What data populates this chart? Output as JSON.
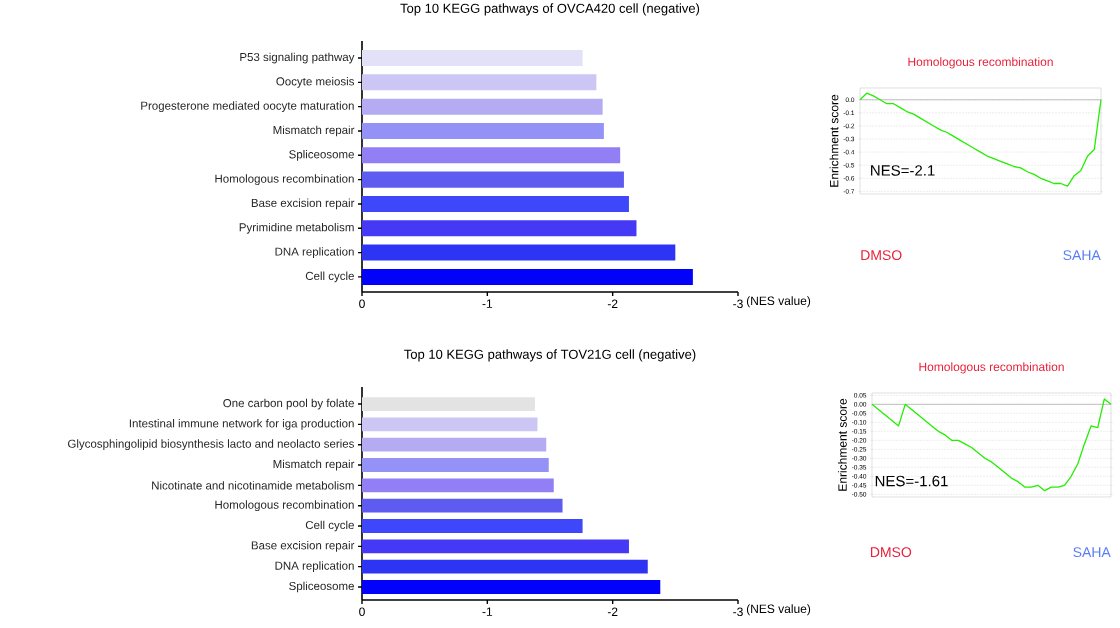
{
  "chart_data": [
    {
      "type": "bar",
      "orientation": "horizontal",
      "title": "Top 10 KEGG pathways of OVCA420 cell (negative)",
      "xlabel": "(NES value)",
      "categories": [
        "P53 signaling pathway",
        "Oocyte meiosis",
        "Progesterone mediated oocyte maturation",
        "Mismatch repair",
        "Spliceosome",
        "Homologous recombination",
        "Base excision repair",
        "Pyrimidine metabolism",
        "DNA replication",
        "Cell cycle"
      ],
      "values": [
        -1.76,
        -1.87,
        -1.92,
        -1.93,
        -2.06,
        -2.09,
        -2.13,
        -2.19,
        -2.5,
        -2.64
      ],
      "colors": [
        "#e3e1f8",
        "#ccc6f5",
        "#b4abf3",
        "#9592f7",
        "#937ff5",
        "#5e5bf0",
        "#3e48fa",
        "#4539f6",
        "#2e34f4",
        "#0202fa"
      ],
      "xlim": [
        0,
        -3
      ],
      "xticks": [
        0,
        -1,
        -2,
        -3
      ]
    },
    {
      "type": "line",
      "title": "Homologous recombination",
      "ylabel": "Enrichment score",
      "categories": [
        null,
        null,
        null,
        null,
        null,
        null,
        null,
        null,
        null,
        null,
        null,
        null,
        null,
        null,
        null,
        null,
        null,
        null,
        null,
        null,
        null,
        null,
        null,
        null,
        null,
        null,
        null,
        null,
        null,
        null,
        null,
        null,
        null,
        null,
        null,
        null,
        null
      ],
      "series": [
        {
          "color": "#22ee00",
          "values": [
            0.0,
            0.05,
            0.03,
            0.0,
            -0.03,
            -0.03,
            -0.06,
            -0.09,
            -0.11,
            -0.14,
            -0.17,
            -0.2,
            -0.23,
            -0.25,
            -0.28,
            -0.31,
            -0.34,
            -0.37,
            -0.4,
            -0.43,
            -0.45,
            -0.47,
            -0.49,
            -0.51,
            -0.52,
            -0.55,
            -0.57,
            -0.6,
            -0.62,
            -0.64,
            -0.64,
            -0.66,
            -0.58,
            -0.54,
            -0.43,
            -0.38,
            0.0
          ]
        }
      ],
      "ylim": [
        -0.72,
        0.09
      ],
      "yticks": [
        {
          "value": 0,
          "label": "0.0"
        },
        {
          "value": -0.1,
          "label": "-0.1"
        },
        {
          "value": -0.2,
          "label": "-0.2"
        },
        {
          "value": -0.3,
          "label": "-0.3"
        },
        {
          "value": -0.4,
          "label": "-0.4"
        },
        {
          "value": -0.5,
          "label": "-0.5"
        },
        {
          "value": -0.6,
          "label": "-0.6"
        },
        {
          "value": -0.7,
          "label": "-0.7"
        }
      ],
      "grid": "y",
      "tick_labels": "y",
      "ref_lines": [
        {
          "axis": "y",
          "value": 0,
          "color": "#999999"
        }
      ],
      "annotations": [
        "NES=-2.1",
        "DMSO",
        "SAHA"
      ]
    },
    {
      "type": "bar",
      "orientation": "horizontal",
      "title": "Top 10 KEGG pathways of TOV21G cell (negative)",
      "xlabel": "(NES value)",
      "categories": [
        "One carbon pool by folate",
        "Intestinal immune network for iga production",
        "Glycosphingolipid biosynthesis lacto and neolacto series",
        "Mismatch repair",
        "Nicotinate and nicotinamide metabolism",
        "Homologous recombination",
        "Cell cycle",
        "Base excision repair",
        "DNA replication",
        "Spliceosome"
      ],
      "values": [
        -1.38,
        -1.4,
        -1.47,
        -1.49,
        -1.53,
        -1.6,
        -1.76,
        -2.13,
        -2.28,
        -2.38
      ],
      "colors": [
        "#e3e3e3",
        "#ccc6f5",
        "#b4abf3",
        "#9592f7",
        "#937ff5",
        "#5e5bf0",
        "#3e48fa",
        "#4539f6",
        "#2e34f4",
        "#0202fa"
      ],
      "xlim": [
        0,
        -3
      ],
      "xticks": [
        0,
        -1,
        -2,
        -3
      ]
    },
    {
      "type": "line",
      "title": "Homologous recombination",
      "ylabel": "Enrichment score",
      "categories": [
        null,
        null,
        null,
        null,
        null,
        null,
        null,
        null,
        null,
        null,
        null,
        null,
        null,
        null,
        null,
        null,
        null,
        null,
        null,
        null,
        null,
        null,
        null,
        null,
        null,
        null,
        null,
        null,
        null,
        null,
        null,
        null,
        null,
        null,
        null,
        null,
        null
      ],
      "series": [
        {
          "color": "#22ee00",
          "values": [
            0.0,
            -0.03,
            -0.06,
            -0.09,
            -0.12,
            0.0,
            -0.03,
            -0.06,
            -0.09,
            -0.12,
            -0.15,
            -0.17,
            -0.2,
            -0.2,
            -0.22,
            -0.24,
            -0.27,
            -0.3,
            -0.32,
            -0.35,
            -0.38,
            -0.41,
            -0.43,
            -0.46,
            -0.46,
            -0.45,
            -0.48,
            -0.46,
            -0.46,
            -0.45,
            -0.4,
            -0.33,
            -0.22,
            -0.12,
            -0.13,
            0.03,
            0.0
          ]
        }
      ],
      "ylim": [
        -0.515,
        0.063
      ],
      "yticks": [
        {
          "value": 0.05,
          "label": "0.05"
        },
        {
          "value": 0,
          "label": "0.00"
        },
        {
          "value": -0.05,
          "label": "-0.05"
        },
        {
          "value": -0.1,
          "label": "-0.10"
        },
        {
          "value": -0.15,
          "label": "-0.15"
        },
        {
          "value": -0.2,
          "label": "-0.20"
        },
        {
          "value": -0.25,
          "label": "-0.25"
        },
        {
          "value": -0.3,
          "label": "-0.30"
        },
        {
          "value": -0.35,
          "label": "-0.35"
        },
        {
          "value": -0.4,
          "label": "-0.40"
        },
        {
          "value": -0.45,
          "label": "-0.45"
        },
        {
          "value": -0.5,
          "label": "-0.50"
        }
      ],
      "grid": "y",
      "tick_labels": "y",
      "ref_lines": [
        {
          "axis": "y",
          "value": 0,
          "color": "#999999"
        }
      ],
      "annotations": [
        "NES=-1.61",
        "DMSO",
        "SAHA"
      ]
    }
  ]
}
